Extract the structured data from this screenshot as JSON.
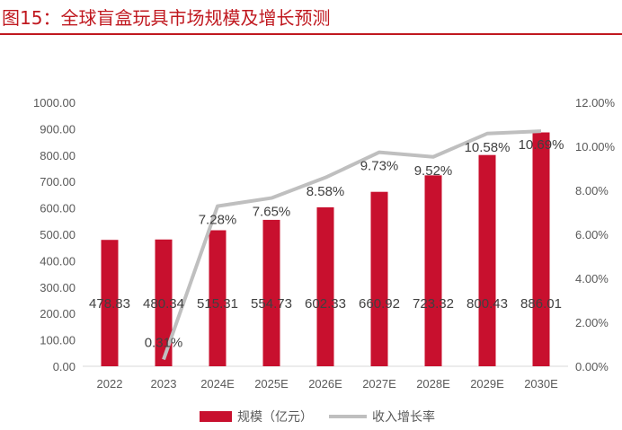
{
  "figure": {
    "title": "图15：全球盲盒玩具市场规模及增长预测"
  },
  "colors": {
    "title": "#c0181f",
    "bar": "#c8102e",
    "line": "#bfbfbf",
    "axis_text": "#595959",
    "label_text": "#404040"
  },
  "chart_data": {
    "type": "bar",
    "categories": [
      "2022",
      "2023",
      "2024E",
      "2025E",
      "2026E",
      "2027E",
      "2028E",
      "2029E",
      "2030E"
    ],
    "series": [
      {
        "name": "规模（亿元）",
        "type": "bar",
        "axis": "left",
        "values": [
          478.83,
          480.34,
          515.31,
          554.73,
          602.33,
          660.92,
          723.32,
          800.43,
          886.01
        ],
        "labels": [
          "478.83",
          "480.34",
          "515.31",
          "554.73",
          "602.33",
          "660.92",
          "723.32",
          "800.43",
          "886.01"
        ]
      },
      {
        "name": "收入增长率",
        "type": "line",
        "axis": "right",
        "values": [
          null,
          0.31,
          7.28,
          7.65,
          8.58,
          9.73,
          9.52,
          10.58,
          10.69
        ],
        "labels": [
          "",
          "0.31%",
          "7.28%",
          "7.65%",
          "8.58%",
          "9.73%",
          "9.52%",
          "10.58%",
          "10.69%"
        ]
      }
    ],
    "y_left": {
      "lim": [
        0,
        1000
      ],
      "ticks": [
        "0.00",
        "100.00",
        "200.00",
        "300.00",
        "400.00",
        "500.00",
        "600.00",
        "700.00",
        "800.00",
        "900.00",
        "1000.00"
      ]
    },
    "y_right": {
      "lim": [
        0,
        12
      ],
      "ticks": [
        "0.00%",
        "2.00%",
        "4.00%",
        "6.00%",
        "8.00%",
        "10.00%",
        "12.00%"
      ]
    },
    "grid": false,
    "legend": "bottom"
  }
}
